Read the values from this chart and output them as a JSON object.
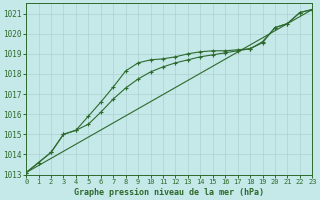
{
  "title": "Graphe pression niveau de la mer (hPa)",
  "bg_color": "#c5e8e8",
  "grid_color": "#aed0d0",
  "line_color": "#2d6a2d",
  "ylim": [
    1013.0,
    1021.5
  ],
  "xlim": [
    0,
    23
  ],
  "yticks": [
    1013,
    1014,
    1015,
    1016,
    1017,
    1018,
    1019,
    1020,
    1021
  ],
  "xticks": [
    0,
    1,
    2,
    3,
    4,
    5,
    6,
    7,
    8,
    9,
    10,
    11,
    12,
    13,
    14,
    15,
    16,
    17,
    18,
    19,
    20,
    21,
    22,
    23
  ],
  "series1_x": [
    0,
    1,
    2,
    3,
    4,
    5,
    6,
    7,
    8,
    9,
    10,
    11,
    12,
    13,
    14,
    15,
    16,
    17,
    18,
    19,
    20,
    21,
    22,
    23
  ],
  "series1_y": [
    1013.1,
    1013.6,
    1014.1,
    1015.0,
    1015.2,
    1015.9,
    1016.6,
    1017.35,
    1018.15,
    1018.55,
    1018.7,
    1018.75,
    1018.85,
    1019.0,
    1019.1,
    1019.15,
    1019.15,
    1019.2,
    1019.25,
    1019.6,
    1020.3,
    1020.5,
    1021.05,
    1021.2
  ],
  "series2_x": [
    0,
    1,
    2,
    3,
    4,
    5,
    6,
    7,
    8,
    9,
    10,
    11,
    12,
    13,
    14,
    15,
    16,
    17,
    18,
    19,
    20,
    21,
    22,
    23
  ],
  "series2_y": [
    1013.1,
    1013.6,
    1014.1,
    1015.0,
    1015.2,
    1015.5,
    1016.1,
    1016.75,
    1017.3,
    1017.75,
    1018.1,
    1018.35,
    1018.55,
    1018.7,
    1018.85,
    1018.95,
    1019.05,
    1019.15,
    1019.25,
    1019.55,
    1020.3,
    1020.5,
    1021.05,
    1021.2
  ],
  "series3_x": [
    0,
    23
  ],
  "series3_y": [
    1013.1,
    1021.2
  ]
}
